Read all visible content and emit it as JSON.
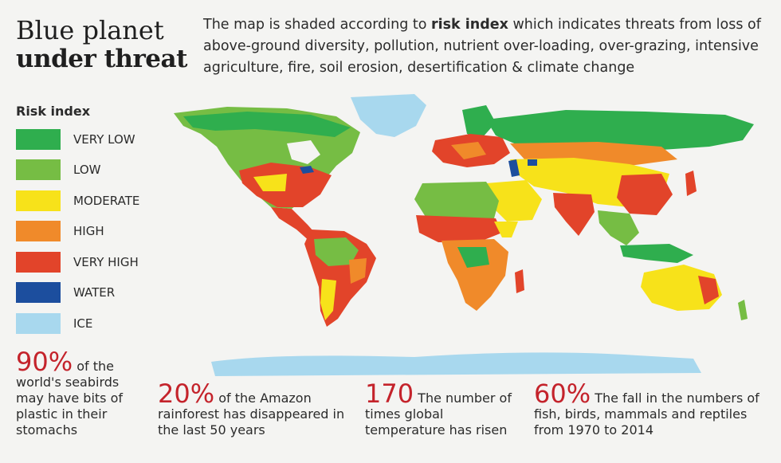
{
  "title": {
    "line1": "Blue planet",
    "line2": "under threat"
  },
  "intro": {
    "before": "The map is shaded according to ",
    "bold": "risk index",
    "after": " which indicates threats from loss of above-ground diversity, pollution, nutrient over-loading, over-grazing, intensive agriculture, fire, soil erosion, desertification & climate change"
  },
  "legend": {
    "title": "Risk index",
    "items": [
      {
        "label": "VERY LOW",
        "color": "#2fae4e"
      },
      {
        "label": "LOW",
        "color": "#76bd44"
      },
      {
        "label": "MODERATE",
        "color": "#f7e21a"
      },
      {
        "label": "HIGH",
        "color": "#f08a2a"
      },
      {
        "label": "VERY HIGH",
        "color": "#e2442a"
      },
      {
        "label": "WATER",
        "color": "#1c4e9e"
      },
      {
        "label": "ICE",
        "color": "#a8d8ee"
      }
    ]
  },
  "stats": [
    {
      "value": "90%",
      "text": "of the world's seabirds may have bits of plastic in their stomachs"
    },
    {
      "value": "20%",
      "text": "of the Amazon rainforest has disappeared in the last 50 years"
    },
    {
      "value": "170",
      "text": "The number of times global temperature has risen"
    },
    {
      "value": "60%",
      "text": "The fall in the numbers of fish, birds, mammals and reptiles from 1970 to 2014"
    }
  ]
}
